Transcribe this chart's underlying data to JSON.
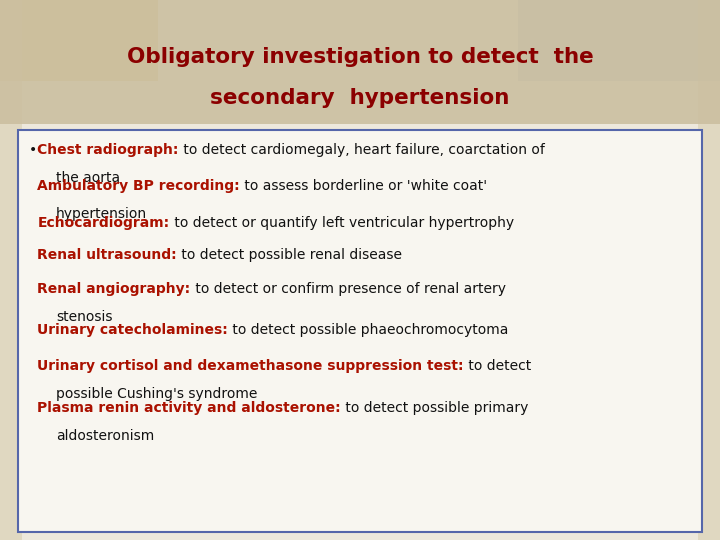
{
  "title_line1": "Obligatory investigation to detect  the",
  "title_line2": "secondary  hypertension",
  "title_color": "#8B0000",
  "title_bg_color": "#CBBFA0",
  "bg_color": "#EDE8DC",
  "content_bg": "#F8F6F0",
  "border_color": "#5566AA",
  "red_color": "#AA1100",
  "black_color": "#111111",
  "items": [
    {
      "label": "Chest radiograph:",
      "text": " to detect cardiomegaly, heart failure, coarctation of",
      "continuation": "    the aorta",
      "bullet": true
    },
    {
      "label": "Ambulatory BP recording:",
      "text": " to assess borderline or 'white coat'",
      "continuation": "    hypertension",
      "bullet": false
    },
    {
      "label": "Echocardiogram:",
      "text": " to detect or quantify left ventricular hypertrophy",
      "continuation": "",
      "bullet": false
    },
    {
      "label": "Renal ultrasound:",
      "text": " to detect possible renal disease",
      "continuation": "",
      "bullet": false
    },
    {
      "label": "Renal angiography:",
      "text": " to detect or confirm presence of renal artery",
      "continuation": "    stenosis",
      "bullet": false
    },
    {
      "label": "Urinary catecholamines:",
      "text": " to detect possible phaeochromocytoma",
      "continuation": "",
      "bullet": false
    },
    {
      "label": "Urinary cortisol and dexamethasone suppression test:",
      "text": " to detect",
      "continuation": "    possible Cushing's syndrome",
      "bullet": false
    },
    {
      "label": "Plasma renin activity and aldosterone:",
      "text": " to detect possible primary",
      "continuation": "    aldosteronism",
      "bullet": false
    }
  ]
}
